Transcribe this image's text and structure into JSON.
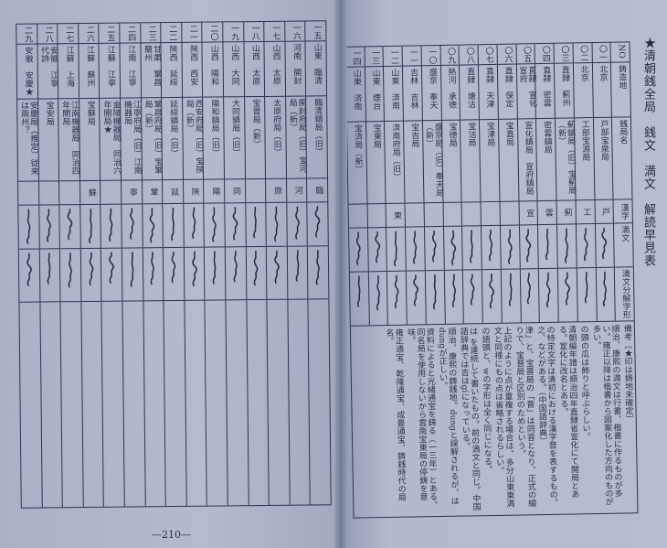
{
  "title": "★清朝銭全局　銭文　満文　解読早見表",
  "page_number": "—210—",
  "headers": {
    "no": "NO",
    "site": "鋳造地",
    "bureau": "銭局名",
    "kanji": "漢字",
    "manchu": "満文",
    "decomp": "満文分解字形",
    "notes": "備考〔★印は鋳地未確定〕"
  },
  "right_rows": [
    {
      "no": "〇一",
      "site": "北京",
      "bureau": "戸部宝泉局",
      "kanji": "戸",
      "notes": "順治、康熙の満文は行書、楷書に作るものが多い。雍正以降は楷書から図案化した方向のものが多い。"
    },
    {
      "no": "〇二",
      "site": "北京",
      "bureau": "工部宝源局",
      "kanji": "工",
      "notes": ""
    },
    {
      "no": "〇三",
      "site": "直隷　薊州",
      "bureau": "薊鎮局（旧）宝薊局（新）",
      "kanji": "薊",
      "notes": "の頭の瓜は飾りと呼ぶらしい。"
    },
    {
      "no": "〇四",
      "site": "直隷　密雲",
      "bureau": "密雲鎮局",
      "kanji": "雲",
      "notes": ""
    },
    {
      "no": "〇五",
      "site": "直隷　宣化　宣府",
      "bureau": "宣化鎮局　宣府鎮局",
      "kanji": "宣",
      "notes": "清朝編年譜は順治四年直隷省宣化にて開局とある。宣化に改名とある。"
    },
    {
      "no": "〇六",
      "site": "直隷　保定",
      "bureau": "宝直局",
      "kanji": "",
      "notes": "の特定文字は清初における漢字音を表するもの。之、などがある。（中国語辞典）"
    },
    {
      "no": "〇七",
      "site": "直隷　天津",
      "bureau": "宝津局",
      "kanji": "",
      "notes": "津」と、宝晋局の「晋」は同音となり、正式の綴りで、宝晋局と区別のためという。"
    },
    {
      "no": "〇八",
      "site": "直隷　塘沽",
      "bureau": "宝沽局",
      "kanji": "",
      "notes": ""
    },
    {
      "no": "〇九",
      "site": "熱河　承徳",
      "bureau": "宝徳局",
      "kanji": "",
      "notes": "上記のように点が重複する場合は、多分山東東満文と同様にもの点は省略されるらしい。"
    },
    {
      "no": "一〇",
      "site": "盛京　奉天",
      "bureau": "盛京局（旧）奉天局（新）",
      "kanji": "",
      "notes": "の語頭と、wの字形は全く同じになる。"
    },
    {
      "no": "一一",
      "site": "吉林　吉林",
      "bureau": "宝吉局",
      "kanji": "",
      "notes": "は を連続して書いたもの。前の満文と同じ。中国語辞典では吉はgiになっている。"
    },
    {
      "no": "一二",
      "site": "山東　済南",
      "bureau": "済南府局（旧）",
      "kanji": "東",
      "notes": "順治、康熙の鋳銭地。dungと誤解されるが、はdungが正しい。"
    },
    {
      "no": "一三",
      "site": "山東　煙台",
      "bureau": "宝東局",
      "kanji": "",
      "notes": "資料によると光緒通宝を鋳る（一三年）とある。同名局を使用しないから雲南宝東局の停鋳を意味。"
    },
    {
      "no": "一四",
      "site": "山東　済南",
      "bureau": "宝済局（新）",
      "kanji": "",
      "notes": "雍正通宝、乾隆通宝、成豊通宝、鋳銭時代の局名。"
    }
  ],
  "left_rows": [
    {
      "no": "一五",
      "site": "山東　臨清",
      "bureau": "臨清鎮局（旧）",
      "kanji": "臨",
      "notes": ""
    },
    {
      "no": "一六",
      "site": "河南　開封",
      "bureau": "開封府局（旧）宝河局（新）",
      "kanji": "河",
      "notes": ""
    },
    {
      "no": "一七",
      "site": "山西　太原",
      "bureau": "太原府局（旧）",
      "kanji": "原",
      "notes": ""
    },
    {
      "no": "一八",
      "site": "山西　太原",
      "bureau": "宝晋局（新）",
      "kanji": "",
      "notes": ""
    },
    {
      "no": "一九",
      "site": "山西　大同",
      "bureau": "大同鎮局（旧）",
      "kanji": "同",
      "notes": ""
    },
    {
      "no": "二〇",
      "site": "山西　陽和",
      "bureau": "陽和鎮局（旧）",
      "kanji": "陽",
      "notes": ""
    },
    {
      "no": "二一",
      "site": "陝西　西安",
      "bureau": "西安府局（旧）宝陝局（新）",
      "kanji": "陝",
      "notes": ""
    },
    {
      "no": "二二",
      "site": "陝西　延綏",
      "bureau": "延綏鎮局（旧）",
      "kanji": "延",
      "notes": ""
    },
    {
      "no": "二三",
      "site": "甘粛　鞏昌　蘭州",
      "bureau": "鞏昌府局（旧）宝鞏局（新）",
      "kanji": "鞏",
      "notes": ""
    },
    {
      "no": "二四",
      "site": "江南　江寧",
      "bureau": "江寧府局（旧）江南機器局",
      "kanji": "寧",
      "notes": ""
    },
    {
      "no": "二五",
      "site": "江蘇　江寧",
      "bureau": "金陵機器局　同治六年開局★",
      "kanji": "",
      "notes": ""
    },
    {
      "no": "二六",
      "site": "江蘇　蘇州",
      "bureau": "宝蘇局",
      "kanji": "蘇",
      "notes": ""
    },
    {
      "no": "二七",
      "site": "江蘇　上海",
      "bureau": "江南機器局　同治四年開局",
      "kanji": "",
      "notes": ""
    },
    {
      "no": "二八",
      "site": "安徽　江寧　代詩",
      "bureau": "宝安局",
      "kanji": "",
      "notes": ""
    },
    {
      "no": "二九",
      "site": "安徽　安慶★",
      "bureau": "安慶局（推定）従来は兩州？",
      "kanji": "",
      "notes": ""
    }
  ],
  "colors": {
    "ink": "#2a3048",
    "line": "#2c3352",
    "paper": "#b5bbcf"
  }
}
